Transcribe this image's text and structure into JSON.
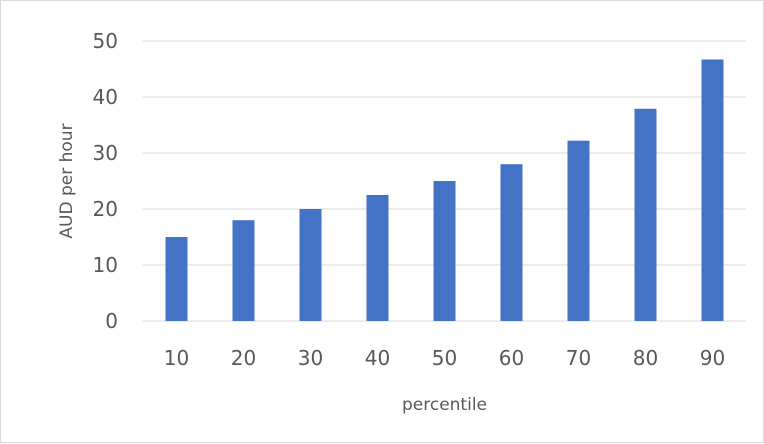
{
  "chart_data": {
    "type": "bar",
    "categories": [
      "10",
      "20",
      "30",
      "40",
      "50",
      "60",
      "70",
      "80",
      "90"
    ],
    "values": [
      15,
      18,
      20,
      22.5,
      25,
      28,
      32.2,
      37.9,
      46.7
    ],
    "xlabel": "percentile",
    "ylabel": "AUD per hour",
    "ylim": [
      0,
      50
    ],
    "yticks": [
      "0",
      "10",
      "20",
      "30",
      "40",
      "50"
    ],
    "grid": true,
    "legend": "none",
    "colors": {
      "bar": "#4472C4",
      "grid": "#d9d9d9",
      "text": "#595959"
    }
  }
}
